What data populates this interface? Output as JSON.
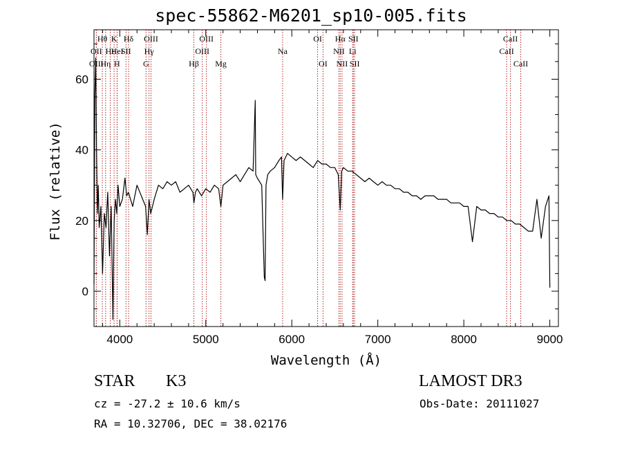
{
  "title": "spec-55862-M6201_sp10-005.fits",
  "info": {
    "object_class": "STAR",
    "subclass": "K3",
    "survey": "LAMOST DR3",
    "cz_text": "cz = -27.2 ± 10.6 km/s",
    "obs_date_text": "Obs-Date: 20111027",
    "radec_text": "RA =  10.32706, DEC =  38.02176"
  },
  "chart_data": {
    "type": "line",
    "title": "spec-55862-M6201_sp10-005.fits",
    "xlabel": "Wavelength (Å)",
    "ylabel": "Flux (relative)",
    "xlim": [
      3700,
      9100
    ],
    "ylim": [
      -10,
      74
    ],
    "xticks": [
      4000,
      5000,
      6000,
      7000,
      8000,
      9000
    ],
    "yticks": [
      0,
      20,
      40,
      60
    ],
    "line_color": "#000000",
    "marker_color": "#b22222",
    "spectrum": {
      "wavelength": [
        3700,
        3710,
        3720,
        3730,
        3740,
        3750,
        3760,
        3780,
        3800,
        3820,
        3840,
        3860,
        3880,
        3900,
        3920,
        3935,
        3950,
        3965,
        3980,
        4000,
        4030,
        4060,
        4080,
        4100,
        4150,
        4200,
        4250,
        4300,
        4320,
        4340,
        4360,
        4400,
        4450,
        4500,
        4550,
        4600,
        4650,
        4700,
        4750,
        4800,
        4850,
        4862,
        4880,
        4900,
        4950,
        5000,
        5050,
        5100,
        5150,
        5175,
        5200,
        5250,
        5300,
        5350,
        5400,
        5450,
        5500,
        5550,
        5575,
        5580,
        5600,
        5650,
        5680,
        5690,
        5700,
        5720,
        5750,
        5800,
        5850,
        5880,
        5893,
        5910,
        5950,
        6000,
        6050,
        6100,
        6150,
        6200,
        6250,
        6300,
        6350,
        6400,
        6450,
        6500,
        6540,
        6563,
        6580,
        6600,
        6650,
        6700,
        6750,
        6800,
        6850,
        6900,
        6950,
        7000,
        7050,
        7100,
        7150,
        7200,
        7250,
        7300,
        7350,
        7400,
        7450,
        7500,
        7550,
        7600,
        7650,
        7700,
        7750,
        7800,
        7850,
        7900,
        7950,
        8000,
        8050,
        8100,
        8150,
        8200,
        8250,
        8300,
        8350,
        8400,
        8450,
        8500,
        8550,
        8600,
        8650,
        8700,
        8750,
        8800,
        8850,
        8900,
        8950,
        8990,
        9000
      ],
      "flux": [
        2,
        55,
        66,
        40,
        22,
        30,
        18,
        24,
        5,
        22,
        18,
        28,
        10,
        24,
        -8,
        20,
        26,
        22,
        30,
        24,
        26,
        32,
        27,
        28,
        24,
        30,
        27,
        24,
        16,
        26,
        22,
        26,
        30,
        29,
        31,
        30,
        31,
        28,
        29,
        30,
        28,
        25,
        28,
        29,
        27,
        29,
        28,
        30,
        29,
        24,
        30,
        31,
        32,
        33,
        31,
        33,
        35,
        34,
        54,
        33,
        32,
        30,
        4,
        3,
        30,
        33,
        34,
        35,
        37,
        38,
        26,
        37,
        39,
        38,
        37,
        38,
        37,
        36,
        35,
        37,
        36,
        36,
        35,
        35,
        33,
        23,
        34,
        35,
        34,
        34,
        33,
        32,
        31,
        32,
        31,
        30,
        31,
        30,
        30,
        29,
        29,
        28,
        28,
        27,
        27,
        26,
        27,
        27,
        27,
        26,
        26,
        26,
        25,
        25,
        25,
        24,
        24,
        14,
        24,
        23,
        23,
        22,
        22,
        21,
        21,
        20,
        20,
        19,
        19,
        18,
        17,
        17,
        26,
        15,
        24,
        27,
        1
      ]
    },
    "lines": [
      {
        "label": "OII",
        "wl": 3727,
        "row": 1
      },
      {
        "label": "Hθ",
        "wl": 3797,
        "row": 0
      },
      {
        "label": "OIII",
        "wl": 3727,
        "row": 2
      },
      {
        "label": "Hη",
        "wl": 3835,
        "row": 2
      },
      {
        "label": "Hε",
        "wl": 3889,
        "row": 1
      },
      {
        "label": "K",
        "wl": 3934,
        "row": 0
      },
      {
        "label": "HeI",
        "wl": 3970,
        "row": 1
      },
      {
        "label": "H",
        "wl": 3968,
        "row": 2
      },
      {
        "label": "Hδ",
        "wl": 4102,
        "row": 0
      },
      {
        "label": "SII",
        "wl": 4072,
        "row": 1
      },
      {
        "label": "OIII",
        "wl": 4363,
        "row": 0
      },
      {
        "label": "Hγ",
        "wl": 4340,
        "row": 1
      },
      {
        "label": "G",
        "wl": 4305,
        "row": 2
      },
      {
        "label": "Hβ",
        "wl": 4861,
        "row": 2
      },
      {
        "label": "OIII",
        "wl": 5007,
        "row": 0
      },
      {
        "label": "OIII",
        "wl": 4959,
        "row": 1
      },
      {
        "label": "Mg",
        "wl": 5175,
        "row": 2
      },
      {
        "label": "Na",
        "wl": 5893,
        "row": 1
      },
      {
        "label": "OI",
        "wl": 6300,
        "row": 0
      },
      {
        "label": "OI",
        "wl": 6363,
        "row": 2
      },
      {
        "label": "Hα",
        "wl": 6563,
        "row": 0
      },
      {
        "label": "SII",
        "wl": 6716,
        "row": 0
      },
      {
        "label": "NII",
        "wl": 6548,
        "row": 1
      },
      {
        "label": "Li",
        "wl": 6707,
        "row": 1
      },
      {
        "label": "NII",
        "wl": 6584,
        "row": 2
      },
      {
        "label": "SII",
        "wl": 6731,
        "row": 2
      },
      {
        "label": "CaII",
        "wl": 8542,
        "row": 0
      },
      {
        "label": "CaII",
        "wl": 8498,
        "row": 1
      },
      {
        "label": "CaII",
        "wl": 8662,
        "row": 2
      }
    ]
  }
}
